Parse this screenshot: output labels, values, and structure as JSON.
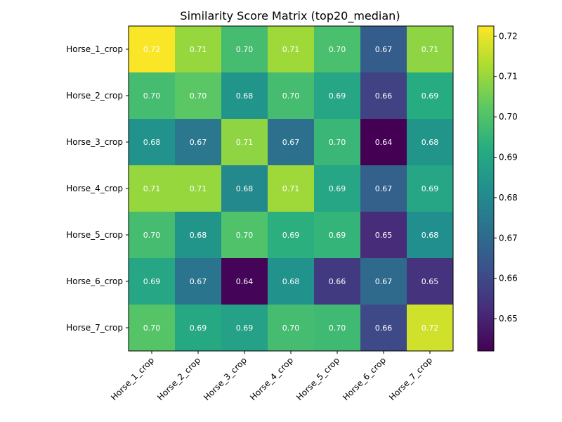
{
  "chart_data": {
    "type": "heatmap",
    "title": "Similarity Score Matrix (top20_median)",
    "xlabel": "",
    "ylabel": "",
    "rows": [
      "Horse_1_crop",
      "Horse_2_crop",
      "Horse_3_crop",
      "Horse_4_crop",
      "Horse_5_crop",
      "Horse_6_crop",
      "Horse_7_crop"
    ],
    "columns": [
      "Horse_1_crop",
      "Horse_2_crop",
      "Horse_3_crop",
      "Horse_4_crop",
      "Horse_5_crop",
      "Horse_6_crop",
      "Horse_7_crop"
    ],
    "values": [
      [
        0.722,
        0.71,
        0.698,
        0.711,
        0.699,
        0.666,
        0.709
      ],
      [
        0.698,
        0.702,
        0.684,
        0.698,
        0.69,
        0.658,
        0.692
      ],
      [
        0.683,
        0.674,
        0.709,
        0.672,
        0.696,
        0.642,
        0.684
      ],
      [
        0.71,
        0.71,
        0.68,
        0.711,
        0.69,
        0.667,
        0.69
      ],
      [
        0.698,
        0.684,
        0.7,
        0.693,
        0.695,
        0.652,
        0.682
      ],
      [
        0.69,
        0.673,
        0.643,
        0.683,
        0.656,
        0.67,
        0.654
      ],
      [
        0.701,
        0.691,
        0.688,
        0.698,
        0.697,
        0.66,
        0.717
      ]
    ],
    "labels": [
      [
        "0.72",
        "0.71",
        "0.70",
        "0.71",
        "0.70",
        "0.67",
        "0.71"
      ],
      [
        "0.70",
        "0.70",
        "0.68",
        "0.70",
        "0.69",
        "0.66",
        "0.69"
      ],
      [
        "0.68",
        "0.67",
        "0.71",
        "0.67",
        "0.70",
        "0.64",
        "0.68"
      ],
      [
        "0.71",
        "0.71",
        "0.68",
        "0.71",
        "0.69",
        "0.67",
        "0.69"
      ],
      [
        "0.70",
        "0.68",
        "0.70",
        "0.69",
        "0.69",
        "0.65",
        "0.68"
      ],
      [
        "0.69",
        "0.67",
        "0.64",
        "0.68",
        "0.66",
        "0.67",
        "0.65"
      ],
      [
        "0.70",
        "0.69",
        "0.69",
        "0.70",
        "0.70",
        "0.66",
        "0.72"
      ]
    ],
    "colormap": "viridis",
    "vmin": 0.642,
    "vmax": 0.7225,
    "colorbar_ticks": [
      0.65,
      0.66,
      0.67,
      0.68,
      0.69,
      0.7,
      0.71,
      0.72
    ],
    "colorbar_tick_labels": [
      "0.65",
      "0.66",
      "0.67",
      "0.68",
      "0.69",
      "0.70",
      "0.71",
      "0.72"
    ],
    "colorbar_position": "right",
    "grid": false
  }
}
